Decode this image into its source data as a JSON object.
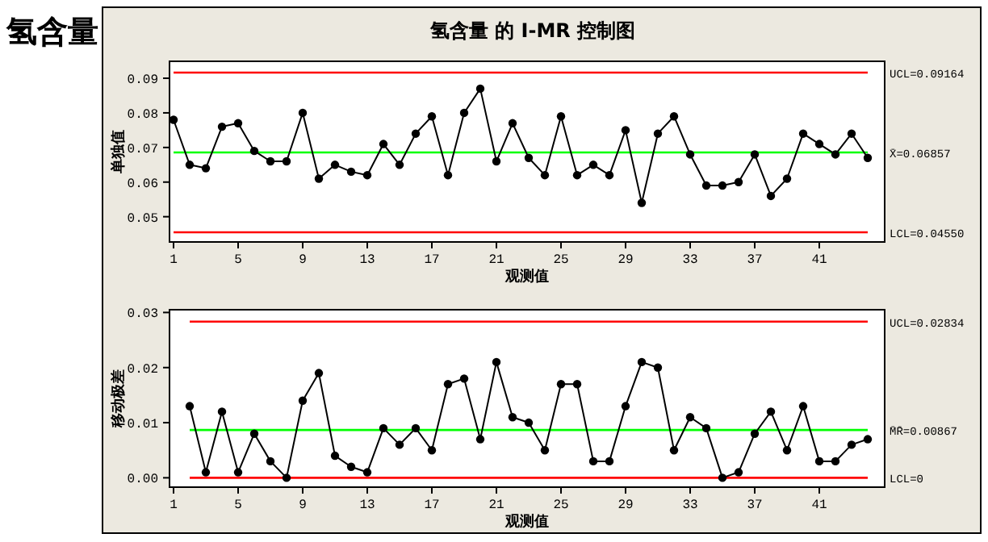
{
  "chart_data": [
    {
      "type": "line",
      "title": "氢含量 的 I-MR 控制图",
      "xlabel": "观测值",
      "ylabel": "单独值",
      "annotations": [
        "氢含量"
      ],
      "x": [
        1,
        2,
        3,
        4,
        5,
        6,
        7,
        8,
        9,
        10,
        11,
        12,
        13,
        14,
        15,
        16,
        17,
        18,
        19,
        20,
        21,
        22,
        23,
        24,
        25,
        26,
        27,
        28,
        29,
        30,
        31,
        32,
        33,
        34,
        35,
        36,
        37,
        38,
        39,
        40,
        41,
        42,
        43,
        44
      ],
      "series": [
        {
          "color": "#000000",
          "values": [
            0.078,
            0.065,
            0.064,
            0.076,
            0.077,
            0.069,
            0.066,
            0.066,
            0.08,
            0.061,
            0.065,
            0.063,
            0.062,
            0.071,
            0.065,
            0.074,
            0.079,
            0.062,
            0.08,
            0.087,
            0.066,
            0.077,
            0.067,
            0.062,
            0.079,
            0.062,
            0.065,
            0.062,
            0.075,
            0.054,
            0.074,
            0.079,
            0.068,
            0.059,
            0.059,
            0.06,
            0.068,
            0.056,
            0.061,
            0.074,
            0.071,
            0.068,
            0.074,
            0.067
          ]
        }
      ],
      "xlim": [
        0.75,
        45.05
      ],
      "ylim": [
        0.0427,
        0.0949
      ],
      "xticks": [
        1,
        5,
        9,
        13,
        17,
        21,
        25,
        29,
        33,
        37,
        41
      ],
      "yticks": [
        0.05,
        0.06,
        0.07,
        0.08,
        0.09
      ],
      "ref_lines": [
        {
          "axis": "y",
          "value": 0.09164,
          "label": "UCL=0.09164",
          "color": "#ff0000"
        },
        {
          "axis": "y",
          "value": 0.06857,
          "label": "X̄=0.06857",
          "color": "#00ff00"
        },
        {
          "axis": "y",
          "value": 0.0455,
          "label": "LCL=0.04550",
          "color": "#ff0000"
        }
      ],
      "marker": "circle",
      "line_style": "solid",
      "grid": false
    },
    {
      "type": "line",
      "xlabel": "观测值",
      "ylabel": "移动极差",
      "x": [
        2,
        3,
        4,
        5,
        6,
        7,
        8,
        9,
        10,
        11,
        12,
        13,
        14,
        15,
        16,
        17,
        18,
        19,
        20,
        21,
        22,
        23,
        24,
        25,
        26,
        27,
        28,
        29,
        30,
        31,
        32,
        33,
        34,
        35,
        36,
        37,
        38,
        39,
        40,
        41,
        42,
        43,
        44
      ],
      "series": [
        {
          "color": "#000000",
          "values": [
            0.013,
            0.001,
            0.012,
            0.001,
            0.008,
            0.003,
            0,
            0.014,
            0.019,
            0.004,
            0.002,
            0.001,
            0.009,
            0.006,
            0.009,
            0.005,
            0.017,
            0.018,
            0.007,
            0.021,
            0.011,
            0.01,
            0.005,
            0.017,
            0.017,
            0.003,
            0.003,
            0.013,
            0.021,
            0.02,
            0.005,
            0.011,
            0.009,
            0,
            0.001,
            0.008,
            0.012,
            0.005,
            0.013,
            0.003,
            0.003,
            0.006,
            0.007
          ]
        }
      ],
      "xlim": [
        0.75,
        45.05
      ],
      "ylim": [
        -0.0017,
        0.0305
      ],
      "xticks": [
        1,
        5,
        9,
        13,
        17,
        21,
        25,
        29,
        33,
        37,
        41
      ],
      "yticks": [
        {
          "value": 0,
          "label": "0.00"
        },
        0.01,
        0.02,
        0.03
      ],
      "ref_lines": [
        {
          "axis": "y",
          "value": 0.02834,
          "label": "UCL=0.02834",
          "color": "#ff0000"
        },
        {
          "axis": "y",
          "value": 0.00867,
          "label": "M̄R̄=0.00867",
          "color": "#00ff00"
        },
        {
          "axis": "y",
          "value": 0,
          "label": "LCL=0",
          "color": "#ff0000"
        }
      ],
      "marker": "circle",
      "line_style": "solid",
      "grid": false
    }
  ]
}
